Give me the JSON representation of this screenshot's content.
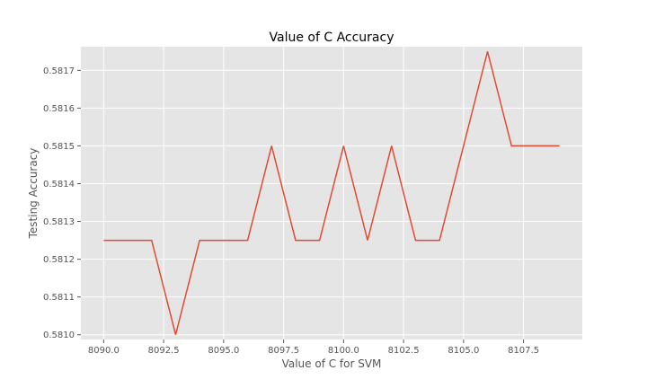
{
  "chart_data": {
    "type": "line",
    "title": "Value of C Accuracy",
    "xlabel": "Value of C for SVM",
    "ylabel": "Testing Accuracy",
    "xlim": [
      8089.05,
      8109.95
    ],
    "ylim": [
      5809.875,
      5817.625
    ],
    "x_ticks": [
      {
        "value": 8090.0,
        "label": "8090.0"
      },
      {
        "value": 8092.5,
        "label": "8092.5"
      },
      {
        "value": 8095.0,
        "label": "8095.0"
      },
      {
        "value": 8097.5,
        "label": "8097.5"
      },
      {
        "value": 8100.0,
        "label": "8100.0"
      },
      {
        "value": 8102.5,
        "label": "8102.5"
      },
      {
        "value": 8105.0,
        "label": "8105.0"
      },
      {
        "value": 8107.5,
        "label": "8107.5"
      }
    ],
    "y_ticks": [
      {
        "value": 0.581,
        "label": "0.5810"
      },
      {
        "value": 0.5811,
        "label": "0.5811"
      },
      {
        "value": 0.5812,
        "label": "0.5812"
      },
      {
        "value": 0.5813,
        "label": "0.5813"
      },
      {
        "value": 0.5814,
        "label": "0.5814"
      },
      {
        "value": 0.5815,
        "label": "0.5815"
      },
      {
        "value": 0.5816,
        "label": "0.5816"
      },
      {
        "value": 0.5817,
        "label": "0.5817"
      }
    ],
    "grid": true,
    "style": {
      "background": "#e5e5e5",
      "grid_color": "#ffffff",
      "line_color": "#e24a33"
    },
    "series": [
      {
        "x": [
          8090,
          8091,
          8092,
          8093,
          8094,
          8095,
          8096,
          8097,
          8098,
          8099,
          8100,
          8101,
          8102,
          8103,
          8104,
          8105,
          8106,
          8107,
          8108,
          8109
        ],
        "y": [
          0.58125,
          0.58125,
          0.58125,
          0.581,
          0.58125,
          0.58125,
          0.58125,
          0.5815,
          0.58125,
          0.58125,
          0.5815,
          0.58125,
          0.5815,
          0.58125,
          0.58125,
          0.5815,
          0.58175,
          0.5815,
          0.5815,
          0.5815
        ]
      }
    ]
  }
}
